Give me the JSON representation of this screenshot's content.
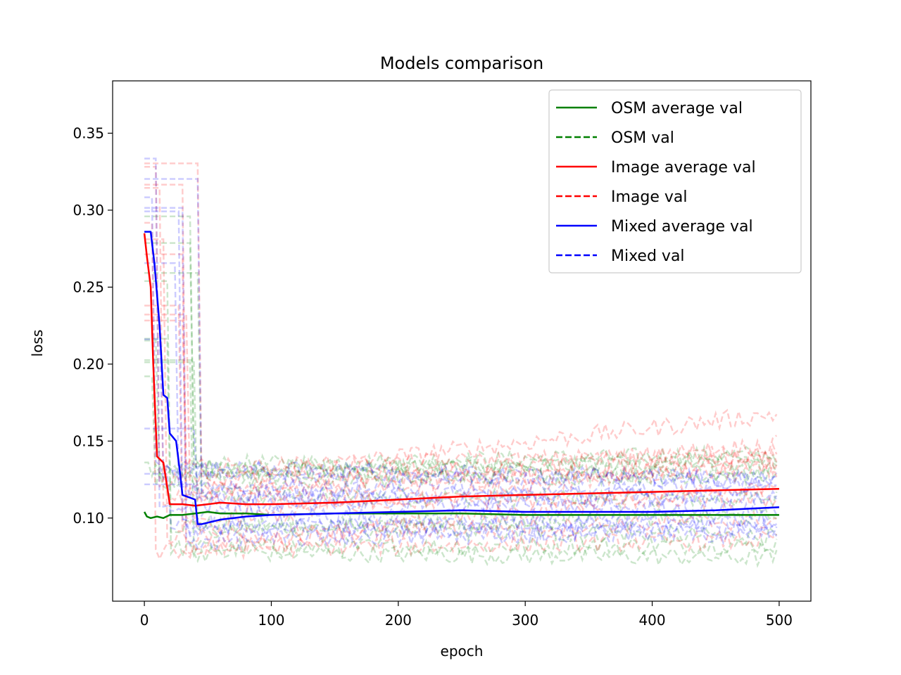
{
  "chart_data": {
    "type": "line",
    "title": "Models comparison",
    "xlabel": "epoch",
    "ylabel": "loss",
    "xlim": [
      -25,
      525
    ],
    "ylim": [
      0.046,
      0.384
    ],
    "xticks": [
      0,
      100,
      200,
      300,
      400,
      500
    ],
    "yticks": [
      0.1,
      0.15,
      0.2,
      0.25,
      0.3,
      0.35
    ],
    "xtick_labels": [
      "0",
      "100",
      "200",
      "300",
      "400",
      "500"
    ],
    "ytick_labels": [
      "0.10",
      "0.15",
      "0.20",
      "0.25",
      "0.30",
      "0.35"
    ],
    "grid": false,
    "legend_position": "top-right",
    "legend": [
      {
        "label": "OSM average val",
        "color": "#008000",
        "style": "solid"
      },
      {
        "label": "OSM val",
        "color": "#008000",
        "style": "dashed"
      },
      {
        "label": "Image average val",
        "color": "#ff0000",
        "style": "solid"
      },
      {
        "label": "Image val",
        "color": "#ff0000",
        "style": "dashed"
      },
      {
        "label": "Mixed average val",
        "color": "#0000ff",
        "style": "solid"
      },
      {
        "label": "Mixed val",
        "color": "#0000ff",
        "style": "dashed"
      }
    ],
    "series": [
      {
        "name": "OSM average val",
        "color": "#008000",
        "style": "solid",
        "x": [
          0,
          2,
          5,
          10,
          15,
          20,
          30,
          40,
          50,
          60,
          80,
          100,
          150,
          200,
          250,
          300,
          350,
          400,
          450,
          500
        ],
        "y": [
          0.104,
          0.101,
          0.1,
          0.101,
          0.1,
          0.102,
          0.102,
          0.103,
          0.104,
          0.103,
          0.103,
          0.102,
          0.103,
          0.103,
          0.103,
          0.102,
          0.102,
          0.102,
          0.102,
          0.102
        ]
      },
      {
        "name": "Image average val",
        "color": "#ff0000",
        "style": "solid",
        "x": [
          0,
          2,
          5,
          7,
          10,
          15,
          18,
          20,
          30,
          40,
          50,
          60,
          80,
          100,
          150,
          200,
          250,
          300,
          350,
          400,
          450,
          500
        ],
        "y": [
          0.285,
          0.27,
          0.25,
          0.2,
          0.14,
          0.136,
          0.12,
          0.109,
          0.109,
          0.108,
          0.109,
          0.11,
          0.109,
          0.109,
          0.11,
          0.112,
          0.114,
          0.115,
          0.116,
          0.117,
          0.118,
          0.119
        ]
      },
      {
        "name": "Mixed average val",
        "color": "#0000ff",
        "style": "solid",
        "x": [
          0,
          5,
          8,
          12,
          15,
          18,
          20,
          22,
          25,
          28,
          30,
          40,
          42,
          45,
          50,
          55,
          60,
          80,
          100,
          150,
          200,
          250,
          300,
          350,
          400,
          450,
          500
        ],
        "y": [
          0.286,
          0.286,
          0.265,
          0.225,
          0.18,
          0.178,
          0.155,
          0.153,
          0.15,
          0.13,
          0.115,
          0.112,
          0.096,
          0.096,
          0.097,
          0.098,
          0.099,
          0.101,
          0.102,
          0.103,
          0.104,
          0.105,
          0.104,
          0.104,
          0.104,
          0.105,
          0.107
        ]
      }
    ]
  }
}
